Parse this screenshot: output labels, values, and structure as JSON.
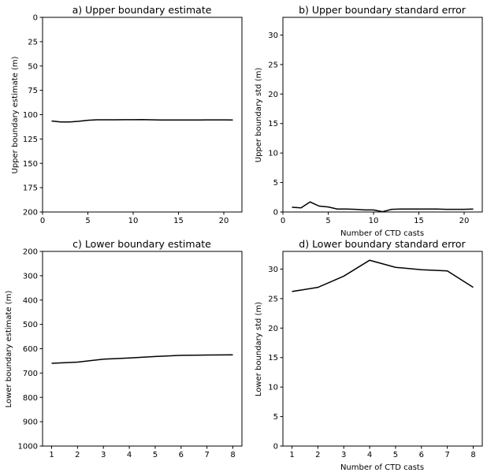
{
  "chart_data": [
    {
      "type": "line",
      "title": "a) Upper boundary estimate",
      "xlabel": "",
      "ylabel": "Upper boundary estimate (m)",
      "xlim": [
        0,
        22
      ],
      "ylim": [
        0,
        200
      ],
      "y_inverted": true,
      "xticks": [
        0,
        5,
        10,
        15,
        20
      ],
      "yticks": [
        0,
        25,
        50,
        75,
        100,
        125,
        150,
        175,
        200
      ],
      "series": [
        {
          "x": [
            1,
            2,
            3,
            4,
            5,
            6,
            7,
            8,
            9,
            10,
            11,
            12,
            13,
            14,
            15,
            16,
            17,
            18,
            19,
            20,
            21
          ],
          "y": [
            106.5,
            107.5,
            107.5,
            106.8,
            105.8,
            105.3,
            105.3,
            105.3,
            105.2,
            105.2,
            105.1,
            105.3,
            105.5,
            105.5,
            105.5,
            105.5,
            105.5,
            105.4,
            105.4,
            105.4,
            105.5
          ]
        }
      ]
    },
    {
      "type": "line",
      "title": "b) Upper boundary standard error",
      "xlabel": "Number of CTD casts",
      "ylabel": "Upper boundary std (m)",
      "xlim": [
        0,
        22
      ],
      "ylim": [
        0,
        33
      ],
      "y_inverted": false,
      "xticks": [
        0,
        5,
        10,
        15,
        20
      ],
      "yticks": [
        0,
        5,
        10,
        15,
        20,
        25,
        30
      ],
      "series": [
        {
          "x": [
            1,
            2,
            3,
            4,
            5,
            6,
            7,
            8,
            9,
            10,
            11,
            12,
            13,
            14,
            15,
            16,
            17,
            18,
            19,
            20,
            21
          ],
          "y": [
            0.8,
            0.7,
            1.7,
            1.0,
            0.85,
            0.5,
            0.5,
            0.45,
            0.35,
            0.35,
            0.05,
            0.45,
            0.5,
            0.5,
            0.5,
            0.5,
            0.5,
            0.45,
            0.45,
            0.45,
            0.5
          ]
        }
      ]
    },
    {
      "type": "line",
      "title": "c) Lower boundary estimate",
      "xlabel": "",
      "ylabel": "Lower boundary estimate (m)",
      "xlim": [
        0.65,
        8.35
      ],
      "ylim": [
        200,
        1000
      ],
      "y_inverted": true,
      "xticks": [
        1,
        2,
        3,
        4,
        5,
        6,
        7,
        8
      ],
      "yticks": [
        200,
        300,
        400,
        500,
        600,
        700,
        800,
        900,
        1000
      ],
      "series": [
        {
          "x": [
            1,
            2,
            3,
            4,
            5,
            6,
            7,
            8
          ],
          "y": [
            660,
            655,
            643,
            638,
            632,
            627,
            626,
            625
          ]
        }
      ]
    },
    {
      "type": "line",
      "title": "d) Lower boundary standard error",
      "xlabel": "Number of CTD casts",
      "ylabel": "Lower boundary std (m)",
      "xlim": [
        0.65,
        8.35
      ],
      "ylim": [
        0,
        33
      ],
      "y_inverted": false,
      "xticks": [
        1,
        2,
        3,
        4,
        5,
        6,
        7,
        8
      ],
      "yticks": [
        0,
        5,
        10,
        15,
        20,
        25,
        30
      ],
      "series": [
        {
          "x": [
            1,
            2,
            3,
            4,
            5,
            6,
            7,
            8
          ],
          "y": [
            26.2,
            26.9,
            28.8,
            31.5,
            30.3,
            29.9,
            29.7,
            26.9
          ]
        }
      ]
    }
  ]
}
